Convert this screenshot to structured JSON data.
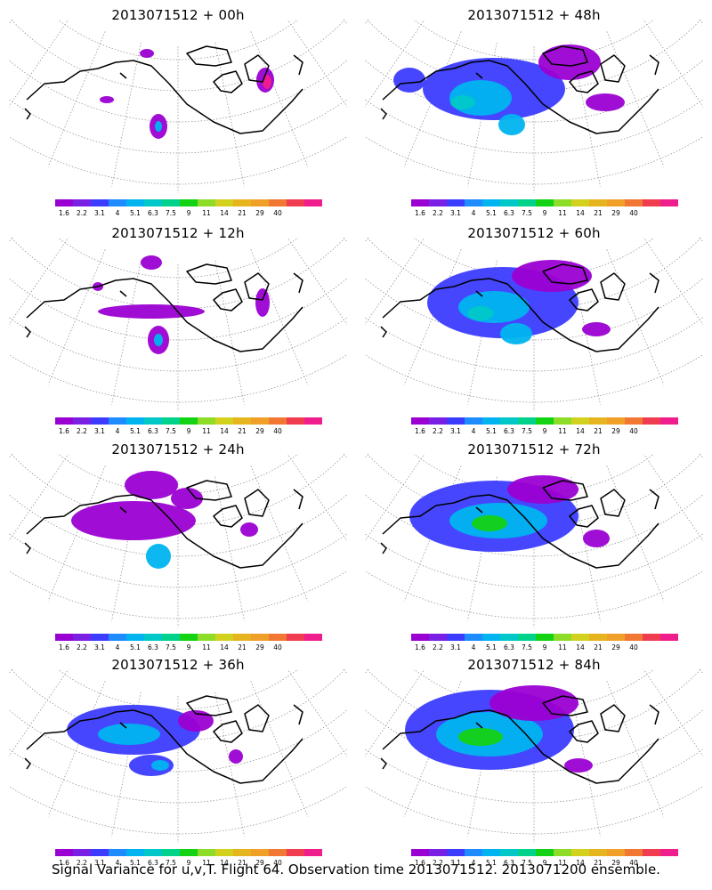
{
  "panels": [
    {
      "title": "2013071512 + 00h"
    },
    {
      "title": "2013071512 + 48h"
    },
    {
      "title": "2013071512 + 12h"
    },
    {
      "title": "2013071512 + 60h"
    },
    {
      "title": "2013071512 + 24h"
    },
    {
      "title": "2013071512 + 72h"
    },
    {
      "title": "2013071512 + 36h"
    },
    {
      "title": "2013071512 + 84h"
    }
  ],
  "colorbar": {
    "labels": [
      "1.6",
      "2.2",
      "3.1",
      "4",
      "5.1",
      "6.3",
      "7.5",
      "9",
      "11",
      "14",
      "21",
      "29",
      "40"
    ],
    "colors": [
      "#9b00d2",
      "#7a1fe4",
      "#3c3cff",
      "#1e8cff",
      "#00b4f0",
      "#00c8c8",
      "#00d28c",
      "#14d214",
      "#8cdc28",
      "#d2d21e",
      "#e6b41e",
      "#f0a028",
      "#f07832",
      "#f03c50",
      "#f01e8c"
    ]
  },
  "caption": "Signal Variance for u,v,T. Flight 64. Observation time 2013071512. 2013071200 ensemble.",
  "colors": {
    "purple": "#9b00d2",
    "violet": "#7a1fe4",
    "blue": "#3c3cff",
    "lightblue": "#1e8cff",
    "cyan": "#00b4f0",
    "teal": "#00c8c8",
    "green": "#14d214",
    "magenta": "#f01e8c"
  }
}
